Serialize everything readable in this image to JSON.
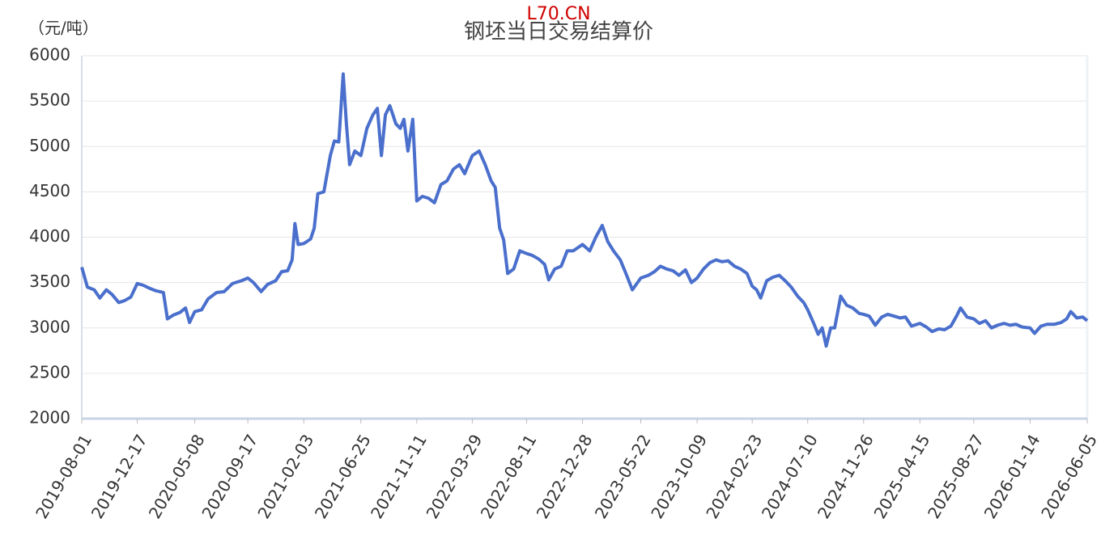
{
  "chart_data": {
    "type": "line",
    "title": "钢坯当日交易结算价",
    "watermark": "L70.CN",
    "y_axis_label": "（元/吨）",
    "x": [
      "2019-08-01",
      "2019-08-15",
      "2019-09-01",
      "2019-09-15",
      "2019-10-01",
      "2019-10-15",
      "2019-11-01",
      "2019-11-15",
      "2019-12-01",
      "2019-12-17",
      "2020-01-01",
      "2020-01-15",
      "2020-02-01",
      "2020-02-20",
      "2020-03-01",
      "2020-03-15",
      "2020-04-01",
      "2020-04-15",
      "2020-04-25",
      "2020-05-08",
      "2020-05-25",
      "2020-06-10",
      "2020-07-01",
      "2020-07-20",
      "2020-08-10",
      "2020-09-01",
      "2020-09-17",
      "2020-10-01",
      "2020-10-20",
      "2020-11-05",
      "2020-11-25",
      "2020-12-10",
      "2020-12-25",
      "2021-01-05",
      "2021-01-12",
      "2021-01-20",
      "2021-02-03",
      "2021-02-20",
      "2021-03-01",
      "2021-03-10",
      "2021-03-25",
      "2021-04-10",
      "2021-04-20",
      "2021-05-01",
      "2021-05-12",
      "2021-05-20",
      "2021-05-28",
      "2021-06-10",
      "2021-06-25",
      "2021-07-10",
      "2021-07-25",
      "2021-08-05",
      "2021-08-15",
      "2021-08-25",
      "2021-09-05",
      "2021-09-20",
      "2021-10-01",
      "2021-10-10",
      "2021-10-20",
      "2021-11-01",
      "2021-11-11",
      "2021-11-25",
      "2021-12-10",
      "2021-12-25",
      "2022-01-10",
      "2022-01-25",
      "2022-02-10",
      "2022-02-25",
      "2022-03-10",
      "2022-03-29",
      "2022-04-15",
      "2022-04-30",
      "2022-05-15",
      "2022-05-25",
      "2022-06-05",
      "2022-06-15",
      "2022-06-25",
      "2022-07-10",
      "2022-07-25",
      "2022-08-11",
      "2022-08-25",
      "2022-09-10",
      "2022-09-25",
      "2022-10-05",
      "2022-10-20",
      "2022-11-05",
      "2022-11-20",
      "2022-12-05",
      "2022-12-28",
      "2023-01-15",
      "2023-01-30",
      "2023-02-15",
      "2023-03-01",
      "2023-03-15",
      "2023-04-01",
      "2023-04-15",
      "2023-05-01",
      "2023-05-22",
      "2023-06-10",
      "2023-06-25",
      "2023-07-10",
      "2023-07-25",
      "2023-08-10",
      "2023-08-25",
      "2023-09-10",
      "2023-09-25",
      "2023-10-09",
      "2023-10-25",
      "2023-11-10",
      "2023-11-25",
      "2023-12-10",
      "2023-12-25",
      "2024-01-10",
      "2024-01-25",
      "2024-02-10",
      "2024-02-23",
      "2024-03-05",
      "2024-03-15",
      "2024-03-30",
      "2024-04-15",
      "2024-04-30",
      "2024-05-15",
      "2024-05-30",
      "2024-06-15",
      "2024-06-30",
      "2024-07-10",
      "2024-07-25",
      "2024-08-05",
      "2024-08-15",
      "2024-08-25",
      "2024-09-05",
      "2024-09-15",
      "2024-09-30",
      "2024-10-15",
      "2024-10-30",
      "2024-11-15",
      "2024-11-26",
      "2024-12-10",
      "2024-12-25",
      "2025-01-10",
      "2025-01-25",
      "2025-02-10",
      "2025-02-25",
      "2025-03-10",
      "2025-03-25",
      "2025-04-15",
      "2025-05-01",
      "2025-05-15",
      "2025-06-01",
      "2025-06-15",
      "2025-07-01",
      "2025-07-15",
      "2025-07-25",
      "2025-08-10",
      "2025-08-27",
      "2025-09-10",
      "2025-09-25",
      "2025-10-10",
      "2025-10-25",
      "2025-11-10",
      "2025-11-25",
      "2025-12-10",
      "2025-12-25",
      "2026-01-14",
      "2026-01-25",
      "2026-02-10",
      "2026-02-25",
      "2026-03-15",
      "2026-04-01",
      "2026-04-15",
      "2026-04-25",
      "2026-05-10",
      "2026-05-25",
      "2026-06-05"
    ],
    "series": [
      {
        "color": "#4a6fcc",
        "values": [
          3670,
          3450,
          3420,
          3330,
          3420,
          3370,
          3280,
          3300,
          3340,
          3490,
          3470,
          3440,
          3410,
          3390,
          3100,
          3140,
          3170,
          3220,
          3060,
          3180,
          3200,
          3320,
          3390,
          3400,
          3490,
          3520,
          3550,
          3500,
          3400,
          3480,
          3520,
          3620,
          3630,
          3750,
          4150,
          3920,
          3930,
          3980,
          4100,
          4480,
          4500,
          4900,
          5060,
          5050,
          5800,
          5250,
          4800,
          4950,
          4900,
          5200,
          5350,
          5420,
          4900,
          5350,
          5450,
          5250,
          5200,
          5300,
          4950,
          5300,
          4400,
          4450,
          4430,
          4380,
          4580,
          4620,
          4750,
          4800,
          4700,
          4900,
          4950,
          4800,
          4620,
          4550,
          4100,
          3970,
          3600,
          3650,
          3850,
          3820,
          3800,
          3760,
          3700,
          3530,
          3650,
          3680,
          3850,
          3850,
          3920,
          3850,
          4000,
          4130,
          3950,
          3850,
          3750,
          3600,
          3420,
          3550,
          3580,
          3620,
          3680,
          3650,
          3630,
          3580,
          3640,
          3500,
          3550,
          3650,
          3720,
          3750,
          3730,
          3740,
          3680,
          3650,
          3600,
          3460,
          3420,
          3330,
          3520,
          3560,
          3580,
          3520,
          3450,
          3350,
          3280,
          3200,
          3050,
          2930,
          3000,
          2800,
          3000,
          3000,
          3350,
          3250,
          3220,
          3160,
          3150,
          3130,
          3030,
          3120,
          3150,
          3130,
          3110,
          3120,
          3020,
          3050,
          3010,
          2960,
          2990,
          2980,
          3020,
          3130,
          3220,
          3120,
          3100,
          3050,
          3080,
          3000,
          3030,
          3050,
          3030,
          3040,
          3010,
          3000,
          2940,
          3020,
          3040,
          3040,
          3060,
          3100,
          3180,
          3110,
          3120,
          3080
        ]
      }
    ],
    "xlim": [
      "2019-08-01",
      "2026-06-05"
    ],
    "xticks": [
      "2019-08-01",
      "2019-12-17",
      "2020-05-08",
      "2020-09-17",
      "2021-02-03",
      "2021-06-25",
      "2021-11-11",
      "2022-03-29",
      "2022-08-11",
      "2022-12-28",
      "2023-05-22",
      "2023-10-09",
      "2024-02-23",
      "2024-07-10",
      "2024-11-26",
      "2025-04-15",
      "2025-08-27",
      "2026-01-14",
      "2026-06-05"
    ],
    "ylim": [
      2000,
      6000
    ],
    "yticks": [
      2000,
      2500,
      3000,
      3500,
      4000,
      4500,
      5000,
      5500,
      6000
    ],
    "grid": true
  }
}
